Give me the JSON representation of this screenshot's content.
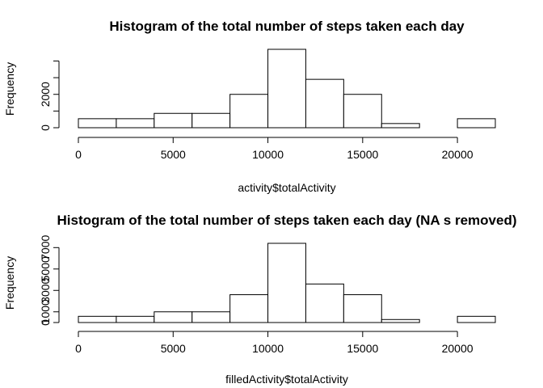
{
  "chart_data": [
    {
      "type": "bar",
      "title": "Histogram of the total number of steps taken each day",
      "xlabel": "activity$totalActivity",
      "ylabel": "Frequency",
      "bins": [
        {
          "from": 0,
          "to": 2000,
          "count": 540
        },
        {
          "from": 2000,
          "to": 4000,
          "count": 540
        },
        {
          "from": 4000,
          "to": 6000,
          "count": 860
        },
        {
          "from": 6000,
          "to": 8000,
          "count": 860
        },
        {
          "from": 8000,
          "to": 10000,
          "count": 2000
        },
        {
          "from": 10000,
          "to": 12000,
          "count": 4700
        },
        {
          "from": 12000,
          "to": 14000,
          "count": 2900
        },
        {
          "from": 14000,
          "to": 16000,
          "count": 2000
        },
        {
          "from": 16000,
          "to": 18000,
          "count": 250
        },
        {
          "from": 18000,
          "to": 20000,
          "count": 0
        },
        {
          "from": 20000,
          "to": 22000,
          "count": 540
        }
      ],
      "x_ticks": [
        0,
        5000,
        10000,
        15000,
        20000
      ],
      "y_ticks": [
        0,
        2000,
        4000
      ],
      "y_tick_labels": [
        "0",
        "2000",
        ""
      ],
      "xlim": [
        0,
        22000
      ],
      "ylim": [
        0,
        4700
      ],
      "grid": false
    },
    {
      "type": "bar",
      "title": "Histogram of the total number of steps taken each day (NA s removed)",
      "xlabel": "filledActivity$totalActivity",
      "ylabel": "Frequency",
      "bins": [
        {
          "from": 0,
          "to": 2000,
          "count": 580
        },
        {
          "from": 2000,
          "to": 4000,
          "count": 580
        },
        {
          "from": 4000,
          "to": 6000,
          "count": 1000
        },
        {
          "from": 6000,
          "to": 8000,
          "count": 1000
        },
        {
          "from": 8000,
          "to": 10000,
          "count": 2600
        },
        {
          "from": 10000,
          "to": 12000,
          "count": 7400
        },
        {
          "from": 12000,
          "to": 14000,
          "count": 3600
        },
        {
          "from": 14000,
          "to": 16000,
          "count": 2600
        },
        {
          "from": 16000,
          "to": 18000,
          "count": 280
        },
        {
          "from": 18000,
          "to": 20000,
          "count": 0
        },
        {
          "from": 20000,
          "to": 22000,
          "count": 580
        }
      ],
      "x_ticks": [
        0,
        5000,
        10000,
        15000,
        20000
      ],
      "y_ticks": [
        0,
        1000,
        3000,
        5000,
        7000
      ],
      "y_tick_labels": [
        "0",
        "1000",
        "3000",
        "5000",
        "7000"
      ],
      "xlim": [
        0,
        22000
      ],
      "ylim": [
        0,
        7400
      ],
      "grid": false
    }
  ]
}
